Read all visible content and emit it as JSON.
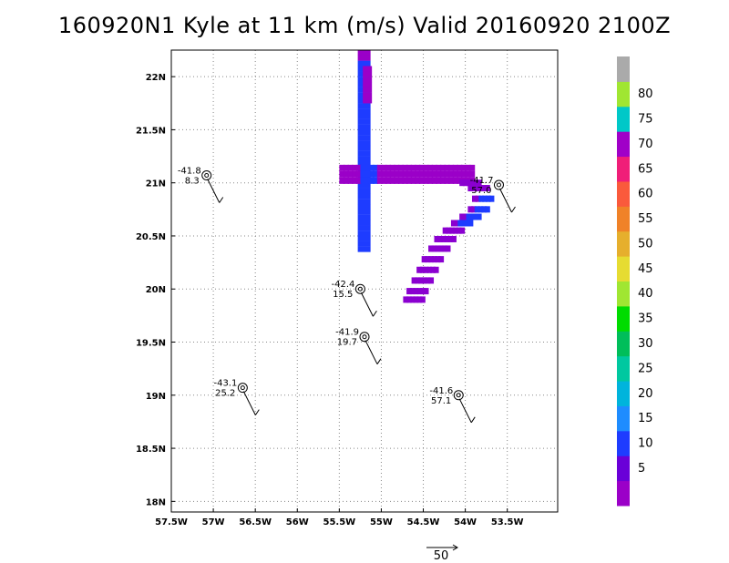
{
  "title": "160920N1 Kyle at 11 km (m/s) Valid 20160920 2100Z",
  "chart_data": {
    "type": "heatmap",
    "title": "160920N1 Kyle at 11 km (m/s) Valid 20160920 2100Z",
    "xlabel": "",
    "ylabel": "",
    "xlim": [
      -57.5,
      -52.9
    ],
    "ylim": [
      17.9,
      22.25
    ],
    "grid": true,
    "x_ticks": [
      {
        "value": -57.5,
        "label": "57.5W"
      },
      {
        "value": -57,
        "label": "57W"
      },
      {
        "value": -56.5,
        "label": "56.5W"
      },
      {
        "value": -56,
        "label": "56W"
      },
      {
        "value": -55.5,
        "label": "55.5W"
      },
      {
        "value": -55,
        "label": "55W"
      },
      {
        "value": -54.5,
        "label": "54.5W"
      },
      {
        "value": -54,
        "label": "54W"
      },
      {
        "value": -53.5,
        "label": "53.5W"
      }
    ],
    "y_ticks": [
      {
        "value": 18,
        "label": "18N"
      },
      {
        "value": 18.5,
        "label": "18.5N"
      },
      {
        "value": 19,
        "label": "19N"
      },
      {
        "value": 19.5,
        "label": "19.5N"
      },
      {
        "value": 20,
        "label": "20N"
      },
      {
        "value": 20.5,
        "label": "20.5N"
      },
      {
        "value": 21,
        "label": "21N"
      },
      {
        "value": 21.5,
        "label": "21.5N"
      },
      {
        "value": 22,
        "label": "22N"
      }
    ],
    "colorbar": {
      "labels": [
        "5",
        "10",
        "15",
        "20",
        "25",
        "30",
        "35",
        "40",
        "45",
        "50",
        "55",
        "60",
        "65",
        "70",
        "75",
        "80"
      ],
      "colors": [
        "#9b00c8",
        "#6a00d8",
        "#1e3cff",
        "#1e8cff",
        "#00b4dc",
        "#00c8a0",
        "#00be5a",
        "#00dc00",
        "#a0e632",
        "#e6dc32",
        "#e6af2d",
        "#f08228",
        "#fa5a3c",
        "#f01e78",
        "#a000c8",
        "#00c8c8",
        "#a0e632",
        "#aaaaaa"
      ]
    },
    "wind_field_cells": [
      {
        "lon": -55.2,
        "lat": 22.2,
        "speed": 5
      },
      {
        "lon": -55.12,
        "lat": 22.2,
        "speed": 5
      },
      {
        "lon": -55.15,
        "lat": 22.0,
        "speed": 10
      },
      {
        "lon": -55.15,
        "lat": 21.8,
        "speed": 10
      },
      {
        "lon": -55.15,
        "lat": 21.6,
        "speed": 10
      },
      {
        "lon": -55.15,
        "lat": 21.4,
        "speed": 10
      },
      {
        "lon": -55.15,
        "lat": 21.2,
        "speed": 10
      },
      {
        "lon": -55.15,
        "lat": 20.8,
        "speed": 10
      },
      {
        "lon": -55.15,
        "lat": 20.6,
        "speed": 10
      },
      {
        "lon": -55.15,
        "lat": 20.45,
        "speed": 10
      },
      {
        "lon": -55.1,
        "lat": 22.1,
        "speed": 5
      },
      {
        "lon": -55.1,
        "lat": 21.95,
        "speed": 5
      },
      {
        "lon": -55.45,
        "lat": 21.07,
        "speed": 5
      },
      {
        "lon": -55.2,
        "lat": 21.07,
        "speed": 10
      },
      {
        "lon": -55.0,
        "lat": 21.07,
        "speed": 5
      },
      {
        "lon": -54.6,
        "lat": 21.07,
        "speed": 5
      },
      {
        "lon": -54.2,
        "lat": 21.07,
        "speed": 5
      },
      {
        "lon": -53.9,
        "lat": 21.07,
        "speed": 5
      },
      {
        "lon": -53.8,
        "lat": 20.9,
        "speed": 5
      },
      {
        "lon": -53.95,
        "lat": 20.7,
        "speed": 10
      },
      {
        "lon": -54.1,
        "lat": 20.55,
        "speed": 5
      },
      {
        "lon": -54.3,
        "lat": 20.4,
        "speed": 5
      },
      {
        "lon": -54.45,
        "lat": 20.2,
        "speed": 5
      },
      {
        "lon": -54.55,
        "lat": 20.0,
        "speed": 5
      },
      {
        "lon": -54.6,
        "lat": 19.9,
        "speed": 5
      }
    ],
    "observations": [
      {
        "lon": -57.08,
        "lat": 21.07,
        "temp": "-41.8",
        "wind": "8.3"
      },
      {
        "lon": -53.6,
        "lat": 20.98,
        "temp": "-41.7",
        "wind": "57.0"
      },
      {
        "lon": -55.25,
        "lat": 20.0,
        "temp": "-42.4",
        "wind": "15.5"
      },
      {
        "lon": -55.2,
        "lat": 19.55,
        "temp": "-41.9",
        "wind": "19.7"
      },
      {
        "lon": -56.65,
        "lat": 19.07,
        "temp": "-43.1",
        "wind": "25.2"
      },
      {
        "lon": -54.08,
        "lat": 19.0,
        "temp": "-41.6",
        "wind": "57.1"
      }
    ],
    "reference_vector_label": "50"
  }
}
